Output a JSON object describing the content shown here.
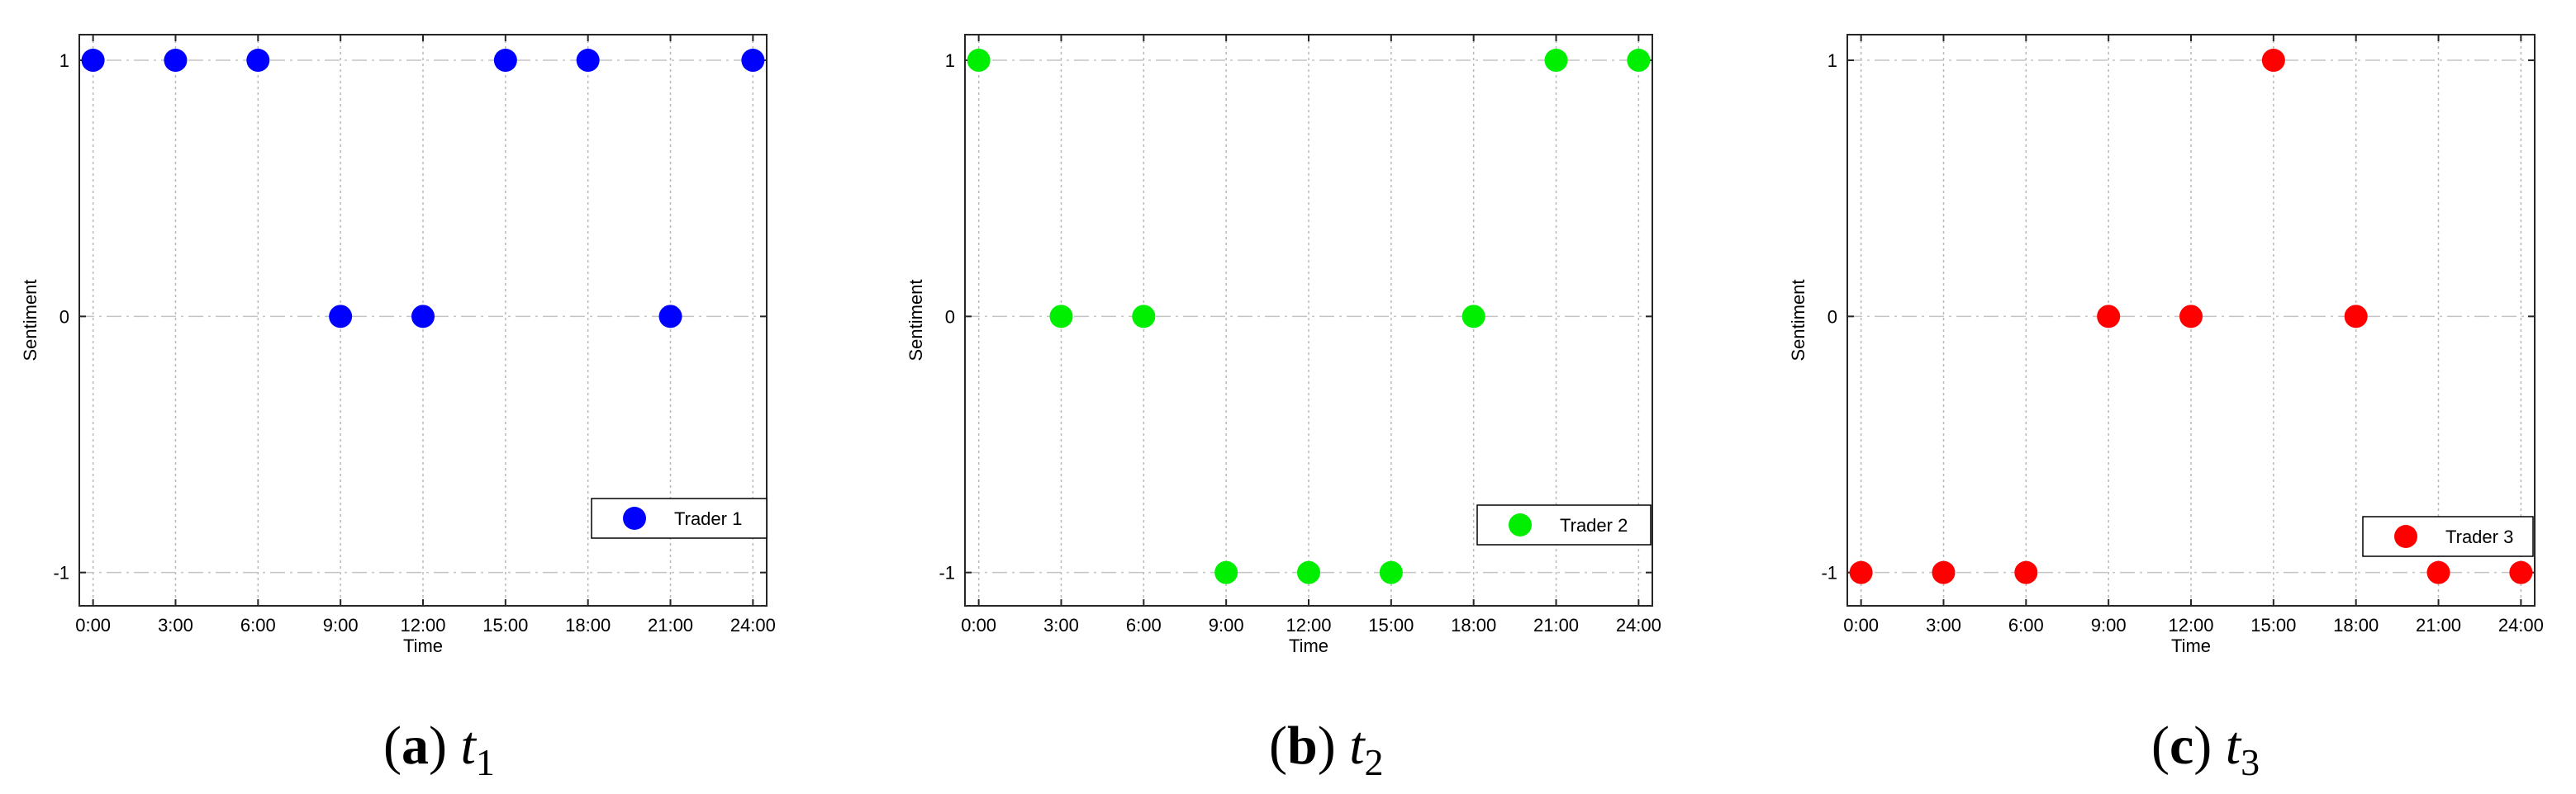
{
  "chart_data": [
    {
      "type": "scatter",
      "panel_label": "a",
      "caption_symbol": "t",
      "caption_subscript": "1",
      "xlabel": "Time",
      "ylabel": "Sentiment",
      "x_ticks": [
        "0:00",
        "3:00",
        "6:00",
        "9:00",
        "12:00",
        "15:00",
        "18:00",
        "21:00",
        "24:00"
      ],
      "y_ticks": [
        "1",
        "0",
        "-1"
      ],
      "y_tick_values": [
        1,
        0,
        -1
      ],
      "ylim": [
        -1.13,
        1.1
      ],
      "xlim": [
        -0.5,
        24.5
      ],
      "grid": true,
      "legend_position": "lower-right",
      "series": [
        {
          "name": "Trader 1",
          "color": "#0000ff",
          "x": [
            0,
            3,
            6,
            9,
            12,
            15,
            18,
            21,
            24
          ],
          "y": [
            1,
            1,
            1,
            0,
            0,
            1,
            1,
            0,
            1
          ]
        }
      ]
    },
    {
      "type": "scatter",
      "panel_label": "b",
      "caption_symbol": "t",
      "caption_subscript": "2",
      "xlabel": "Time",
      "ylabel": "Sentiment",
      "x_ticks": [
        "0:00",
        "3:00",
        "6:00",
        "9:00",
        "12:00",
        "15:00",
        "18:00",
        "21:00",
        "24:00"
      ],
      "y_ticks": [
        "1",
        "0",
        "-1"
      ],
      "y_tick_values": [
        1,
        0,
        -1
      ],
      "ylim": [
        -1.13,
        1.1
      ],
      "xlim": [
        -0.5,
        24.5
      ],
      "grid": true,
      "legend_position": "lower-right",
      "series": [
        {
          "name": "Trader 2",
          "color": "#00ee00",
          "x": [
            0,
            3,
            6,
            9,
            12,
            15,
            18,
            21,
            24
          ],
          "y": [
            1,
            0,
            0,
            -1,
            -1,
            -1,
            0,
            1,
            1
          ]
        }
      ]
    },
    {
      "type": "scatter",
      "panel_label": "c",
      "caption_symbol": "t",
      "caption_subscript": "3",
      "xlabel": "Time",
      "ylabel": "Sentiment",
      "x_ticks": [
        "0:00",
        "3:00",
        "6:00",
        "9:00",
        "12:00",
        "15:00",
        "18:00",
        "21:00",
        "24:00"
      ],
      "y_ticks": [
        "1",
        "0",
        "-1"
      ],
      "y_tick_values": [
        1,
        0,
        -1
      ],
      "ylim": [
        -1.13,
        1.1
      ],
      "xlim": [
        -0.5,
        24.5
      ],
      "grid": true,
      "legend_position": "lower-right",
      "series": [
        {
          "name": "Trader 3",
          "color": "#ff0000",
          "x": [
            0,
            3,
            6,
            9,
            12,
            15,
            18,
            21,
            24
          ],
          "y": [
            -1,
            -1,
            -1,
            0,
            0,
            1,
            0,
            -1,
            -1
          ]
        }
      ]
    }
  ]
}
